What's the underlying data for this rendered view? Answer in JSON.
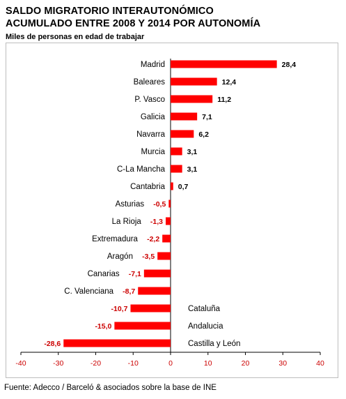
{
  "header": {
    "title_line1": "SALDO MIGRATORIO INTERAUTONÓMICO",
    "title_line2": "ACUMULADO ENTRE 2008 Y 2014 POR AUTONOMÍA",
    "subtitle": "Miles de personas en edad de trabajar"
  },
  "footer": {
    "source": "Fuente: Adecco / Barceló & asociados sobre la base de INE"
  },
  "chart_data": {
    "type": "bar",
    "orientation": "horizontal",
    "title": "SALDO MIGRATORIO INTERAUTONÓMICO ACUMULADO ENTRE 2008 Y 2014 POR AUTONOMÍA",
    "subtitle": "Miles de personas en edad de trabajar",
    "xlabel": "",
    "ylabel": "",
    "xlim": [
      -40,
      40
    ],
    "xticks": [
      -40,
      -30,
      -20,
      -10,
      0,
      10,
      20,
      30,
      40
    ],
    "xtick_labels": [
      "-40",
      "-30",
      "-20",
      "-10",
      "0",
      "10",
      "20",
      "30",
      "40"
    ],
    "grid": false,
    "legend": "none",
    "bar_color": "#ff0000",
    "positive_label_color": "#000000",
    "negative_label_color": "#cc0000",
    "tick_label_color": "#cc0000",
    "categories": [
      "Madrid",
      "Baleares",
      "P. Vasco",
      "Galicia",
      "Navarra",
      "Murcia",
      "C-La Mancha",
      "Cantabria",
      "Asturias",
      "La Rioja",
      "Extremadura",
      "Aragón",
      "Canarias",
      "C. Valenciana",
      "Cataluña",
      "Andalucia",
      "Castilla y León"
    ],
    "values": [
      28.4,
      12.4,
      11.2,
      7.1,
      6.2,
      3.1,
      3.1,
      0.7,
      -0.5,
      -1.3,
      -2.2,
      -3.5,
      -7.1,
      -8.7,
      -10.7,
      -15.0,
      -28.6
    ],
    "value_labels": [
      "28,4",
      "12,4",
      "11,2",
      "7,1",
      "6,2",
      "3,1",
      "3,1",
      "0,7",
      "-0,5",
      "-1,3",
      "-2,2",
      "-3,5",
      "-7,1",
      "-8,7",
      "-10,7",
      "-15,0",
      "-28,6"
    ]
  }
}
